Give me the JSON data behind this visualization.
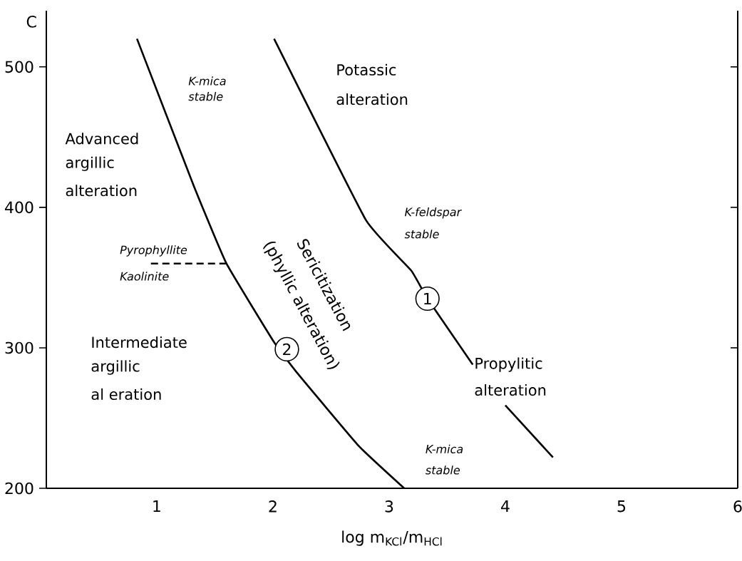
{
  "chart_data": {
    "type": "line",
    "xlabel": "log m$_{KCl}$/m$_{HCl}$",
    "ylabel": "C",
    "xlim": [
      0.05,
      6
    ],
    "ylim": [
      200,
      540
    ],
    "xticks": [
      1,
      2,
      3,
      4,
      5,
      6
    ],
    "yticks": [
      200,
      300,
      400,
      500
    ],
    "series": [
      {
        "color": "#000000",
        "line_style": "solid",
        "x": [
          0.83,
          1.32,
          1.6,
          2.01,
          2.21,
          2.74,
          3.13
        ],
        "values": [
          520,
          415,
          360,
          304,
          282,
          230,
          200
        ]
      },
      {
        "color": "#000000",
        "line_style": "solid",
        "x": [
          2.01,
          2.8,
          3.19,
          3.33,
          3.72,
          3.85,
          4.0,
          4.41
        ],
        "values": [
          520,
          391,
          355,
          335,
          288,
          null,
          259,
          222
        ]
      },
      {
        "color": "#000000",
        "line_style": "dashed",
        "x": [
          0.95,
          1.6
        ],
        "values": [
          360,
          360
        ]
      }
    ],
    "annotations": [
      "K-mica",
      "stable",
      "Potassic",
      "alteration",
      "Advanced",
      "argillic",
      "alteration",
      "K-feldspar",
      "stable",
      "Pyrophyllite",
      "Kaolinite",
      "Intermediate",
      "argillic",
      "al eration",
      "Propylitic",
      "alteration",
      "K-mica",
      "stable",
      "Sericitization",
      "(phyllic alteration)",
      {
        "text": "1",
        "x": 3.33,
        "y": 335
      },
      {
        "text": "2",
        "x": 2.12,
        "y": 299
      }
    ]
  }
}
